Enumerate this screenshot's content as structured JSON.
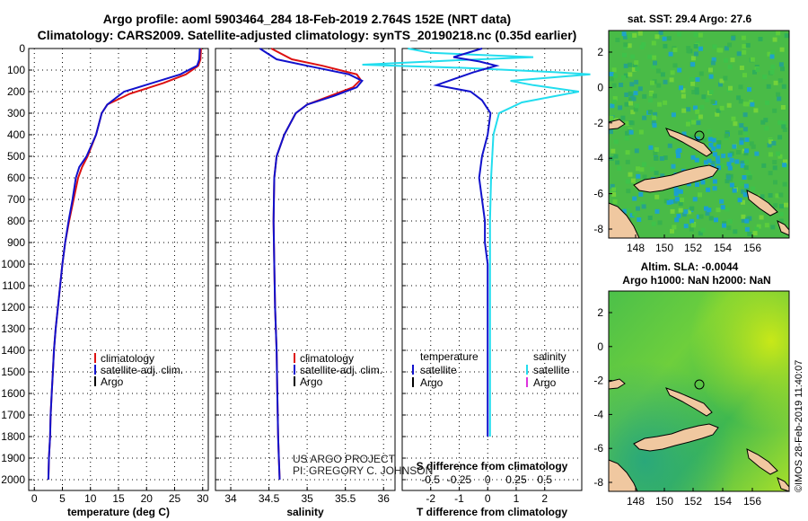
{
  "title_line1": "Argo profile: aoml 5903464_284 18-Feb-2019 2.764S 152E (NRT data)",
  "title_line2": "Climatology: CARS2009. Satellite-adjusted climatology: synTS_20190218.nc (0.35d earlier)",
  "watermark": "US ARGO PROJECT\nPI: GREGORY C. JOHNSON",
  "stamp": "©IMOS 28-Feb-2019 11:40:07",
  "colors": {
    "clim": "#dd1111",
    "sat": "#1111cc",
    "argo": "#000000",
    "sal_sat": "#22ddee",
    "sal_argo": "#dd33dd",
    "land": "#f0c8a0"
  },
  "chart_data": [
    {
      "type": "line",
      "id": "temperature",
      "xlabel": "temperature (deg C)",
      "ylabel": "",
      "xlim": [
        -1,
        31
      ],
      "ylim": [
        2050,
        0
      ],
      "xticks": [
        0,
        5,
        10,
        15,
        20,
        25,
        30
      ],
      "yticks": [
        0,
        100,
        200,
        300,
        400,
        500,
        600,
        700,
        800,
        900,
        1000,
        1100,
        1200,
        1300,
        1400,
        1500,
        1600,
        1700,
        1800,
        1900,
        2000
      ],
      "legend": {
        "position": "lower-right",
        "entries": [
          "climatology",
          "satellite-adj. clim.",
          "Argo"
        ]
      },
      "series": [
        {
          "name": "climatology",
          "color": "#dd1111",
          "points": [
            [
              29.7,
              0
            ],
            [
              29.6,
              50
            ],
            [
              29.2,
              80
            ],
            [
              27,
              120
            ],
            [
              23,
              160
            ],
            [
              17,
              210
            ],
            [
              13,
              260
            ],
            [
              12,
              300
            ],
            [
              11,
              400
            ],
            [
              9.5,
              500
            ],
            [
              8.5,
              550
            ],
            [
              7.8,
              600
            ],
            [
              7,
              700
            ],
            [
              6.2,
              800
            ],
            [
              5.5,
              900
            ],
            [
              5,
              1000
            ],
            [
              4.6,
              1100
            ],
            [
              4.2,
              1200
            ],
            [
              3.8,
              1300
            ],
            [
              3.5,
              1400
            ],
            [
              3.3,
              1500
            ],
            [
              3.1,
              1600
            ],
            [
              2.9,
              1700
            ],
            [
              2.8,
              1800
            ],
            [
              2.6,
              1900
            ],
            [
              2.5,
              2000
            ]
          ]
        },
        {
          "name": "satellite-adj. clim.",
          "color": "#1111cc",
          "points": [
            [
              29.5,
              0
            ],
            [
              29.4,
              50
            ],
            [
              29,
              80
            ],
            [
              26,
              120
            ],
            [
              21,
              160
            ],
            [
              16,
              200
            ],
            [
              13,
              260
            ],
            [
              12,
              300
            ],
            [
              11,
              400
            ],
            [
              9.3,
              500
            ],
            [
              8,
              550
            ],
            [
              7.4,
              600
            ],
            [
              6.8,
              700
            ],
            [
              6.1,
              800
            ],
            [
              5.5,
              900
            ],
            [
              5,
              1000
            ],
            [
              4.6,
              1100
            ],
            [
              4.2,
              1200
            ],
            [
              3.8,
              1300
            ],
            [
              3.5,
              1400
            ],
            [
              3.3,
              1500
            ],
            [
              3.1,
              1600
            ],
            [
              2.9,
              1700
            ],
            [
              2.8,
              1800
            ],
            [
              2.6,
              1900
            ],
            [
              2.5,
              2000
            ]
          ]
        }
      ]
    },
    {
      "type": "line",
      "id": "salinity",
      "xlabel": "salinity",
      "ylabel": "",
      "xlim": [
        33.8,
        36.15
      ],
      "ylim": [
        2050,
        0
      ],
      "xticks": [
        34,
        34.5,
        35,
        35.5,
        36
      ],
      "legend": {
        "position": "lower-right",
        "entries": [
          "climatology",
          "satellite-adj. clim.",
          "Argo"
        ]
      },
      "series": [
        {
          "name": "climatology",
          "color": "#dd1111",
          "points": [
            [
              34.53,
              0
            ],
            [
              34.8,
              50
            ],
            [
              35.2,
              80
            ],
            [
              35.65,
              120
            ],
            [
              35.7,
              145
            ],
            [
              35.6,
              180
            ],
            [
              35.3,
              220
            ],
            [
              35.0,
              260
            ],
            [
              34.85,
              300
            ],
            [
              34.7,
              400
            ],
            [
              34.6,
              500
            ],
            [
              34.57,
              600
            ],
            [
              34.56,
              800
            ],
            [
              34.57,
              1000
            ],
            [
              34.58,
              1200
            ],
            [
              34.6,
              1400
            ],
            [
              34.61,
              1600
            ],
            [
              34.62,
              1800
            ],
            [
              34.63,
              1900
            ],
            [
              34.64,
              2000
            ]
          ]
        },
        {
          "name": "satellite-adj. clim.",
          "color": "#1111cc",
          "points": [
            [
              34.38,
              0
            ],
            [
              34.6,
              50
            ],
            [
              35.0,
              80
            ],
            [
              35.55,
              120
            ],
            [
              35.72,
              150
            ],
            [
              35.65,
              180
            ],
            [
              35.35,
              220
            ],
            [
              35.0,
              260
            ],
            [
              34.85,
              300
            ],
            [
              34.7,
              400
            ],
            [
              34.6,
              500
            ],
            [
              34.57,
              600
            ],
            [
              34.56,
              800
            ],
            [
              34.57,
              1000
            ],
            [
              34.58,
              1200
            ],
            [
              34.6,
              1400
            ],
            [
              34.61,
              1600
            ],
            [
              34.62,
              1800
            ],
            [
              34.63,
              1900
            ],
            [
              34.64,
              2000
            ]
          ]
        }
      ]
    },
    {
      "type": "line",
      "id": "difference",
      "xlabel": "T difference from climatology",
      "ylabel": "",
      "title_bottom": "S difference from climatology",
      "xlim_T": [
        -3,
        3.3
      ],
      "xticks_T": [
        -2,
        -1,
        0,
        1,
        2
      ],
      "xticks_S": [
        -0.5,
        -0.25,
        0,
        0.25,
        0.5
      ],
      "xtick_labels_S": [
        "-0.5",
        "-0.25",
        "0",
        "0.25",
        "0.5"
      ],
      "ylim": [
        2050,
        0
      ],
      "legend_left": {
        "title": "temperature",
        "entries": [
          "satellite",
          "Argo"
        ]
      },
      "legend_right": {
        "title": "salinity",
        "entries": [
          "satellite",
          "Argo"
        ]
      },
      "series": [
        {
          "name": "temperature satellite",
          "color": "#1111cc",
          "points": [
            [
              -0.2,
              0
            ],
            [
              -1.2,
              40
            ],
            [
              -0.3,
              60
            ],
            [
              0.3,
              80
            ],
            [
              -0.5,
              110
            ],
            [
              -1.8,
              170
            ],
            [
              -0.6,
              200
            ],
            [
              -0.2,
              240
            ],
            [
              0,
              280
            ],
            [
              0.1,
              300
            ],
            [
              0,
              400
            ],
            [
              -0.2,
              500
            ],
            [
              -0.3,
              600
            ],
            [
              -0.2,
              700
            ],
            [
              -0.1,
              800
            ],
            [
              -0.1,
              900
            ],
            [
              0,
              1000
            ],
            [
              0,
              1200
            ],
            [
              0,
              1400
            ],
            [
              0,
              1600
            ],
            [
              0,
              1800
            ]
          ]
        },
        {
          "name": "salinity satellite",
          "color": "#22ddee",
          "points": [
            [
              -0.7,
              0
            ],
            [
              -0.5,
              20
            ],
            [
              0.4,
              40
            ],
            [
              -0.3,
              55
            ],
            [
              -1.1,
              75
            ],
            [
              -0.2,
              90
            ],
            [
              0.6,
              110
            ],
            [
              0.9,
              120
            ],
            [
              0.2,
              150
            ],
            [
              0.4,
              170
            ],
            [
              0.8,
              200
            ],
            [
              0.3,
              250
            ],
            [
              0.1,
              300
            ],
            [
              0.05,
              400
            ],
            [
              0.03,
              600
            ],
            [
              0.02,
              800
            ],
            [
              0.02,
              1000
            ],
            [
              0.02,
              1200
            ],
            [
              0.02,
              1400
            ],
            [
              0.02,
              1600
            ],
            [
              0.02,
              1800
            ]
          ]
        }
      ]
    }
  ],
  "maps": [
    {
      "id": "sst",
      "title1": "sat. SST: 29.4 Argo: 27.6",
      "title2": "",
      "xticks": [
        "148",
        "150",
        "152",
        "154",
        "156"
      ],
      "yticks": [
        "2",
        "0",
        "-2",
        "-4",
        "-6",
        "-8"
      ],
      "marker": "①"
    },
    {
      "id": "sla",
      "title1": "Altim. SLA: -0.0044",
      "title2": "Argo h1000: NaN h2000: NaN",
      "xticks": [
        "148",
        "150",
        "152",
        "154",
        "156"
      ],
      "yticks": [
        "2",
        "0",
        "-2",
        "-4",
        "-6",
        "-8"
      ],
      "marker": "①"
    }
  ]
}
